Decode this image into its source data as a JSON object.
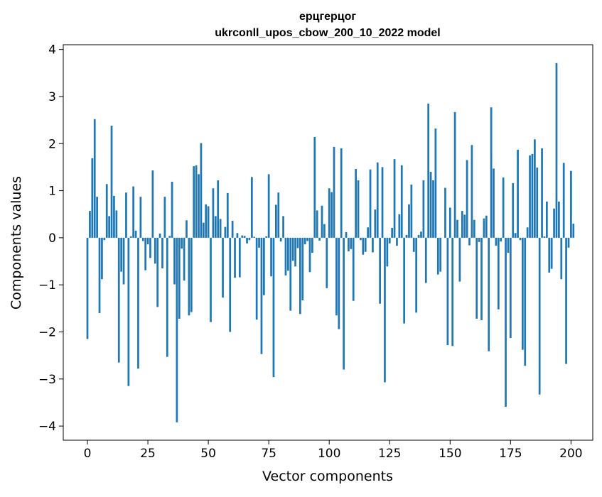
{
  "chart_data": {
    "type": "bar",
    "title_line1": "ерцгерцог",
    "title_line2": "ukrconll_upos_cbow_200_10_2022 model",
    "xlabel": "Vector components",
    "ylabel": "Components values",
    "xlim": [
      -10,
      209
    ],
    "ylim": [
      -4.3,
      4.1
    ],
    "xticks": [
      0,
      25,
      50,
      75,
      100,
      125,
      150,
      175,
      200
    ],
    "yticks": [
      -4,
      -3,
      -2,
      -1,
      0,
      1,
      2,
      3,
      4
    ],
    "xtick_labels": [
      "0",
      "25",
      "50",
      "75",
      "100",
      "125",
      "150",
      "175",
      "200"
    ],
    "ytick_labels": [
      "−4",
      "−3",
      "−2",
      "−1",
      "0",
      "1",
      "2",
      "3",
      "4"
    ],
    "bar_color": "#1f77b4",
    "grid": false,
    "values": [
      -2.15,
      0.57,
      1.69,
      2.52,
      0.87,
      -1.6,
      -0.88,
      -0.05,
      1.14,
      0.46,
      2.38,
      0.89,
      0.58,
      -2.65,
      -0.72,
      -0.99,
      0.96,
      -3.15,
      0.03,
      1.09,
      0.15,
      -2.78,
      0.87,
      -0.07,
      -0.69,
      -0.14,
      -0.43,
      1.43,
      -0.55,
      -1.47,
      0.09,
      -0.65,
      0.87,
      -2.53,
      0.04,
      1.19,
      -0.99,
      -3.92,
      -1.72,
      -0.23,
      -0.91,
      0.37,
      -1.65,
      -1.58,
      1.52,
      1.54,
      1.35,
      2.01,
      0.32,
      0.71,
      0.67,
      -1.79,
      1.05,
      0.46,
      1.22,
      0.4,
      -1.27,
      0.23,
      0.95,
      -2.0,
      0.36,
      -0.85,
      0.1,
      -0.84,
      0.05,
      0.04,
      -0.12,
      -0.05,
      1.29,
      0.02,
      -1.74,
      -0.21,
      -2.47,
      -1.22,
      0.03,
      1.35,
      -0.82,
      -2.96,
      0.7,
      0.96,
      -0.08,
      0.46,
      -0.8,
      -0.7,
      -1.55,
      -0.49,
      -0.61,
      -0.22,
      -1.62,
      -1.33,
      -0.14,
      -0.07,
      -0.73,
      -0.32,
      2.14,
      0.58,
      -0.06,
      0.68,
      0.29,
      -1.07,
      1.05,
      0.97,
      1.93,
      -1.65,
      -1.94,
      1.9,
      -2.8,
      0.12,
      -0.29,
      -0.24,
      -1.34,
      1.46,
      1.22,
      -0.05,
      -0.36,
      -0.3,
      0.22,
      1.45,
      -0.31,
      0.6,
      1.6,
      -1.4,
      1.5,
      -3.07,
      -0.61,
      -0.12,
      0.21,
      1.67,
      -0.17,
      0.5,
      1.54,
      -1.82,
      0.06,
      0.71,
      1.13,
      -0.3,
      -1.59,
      0.06,
      0.13,
      1.22,
      -0.96,
      2.85,
      1.4,
      1.22,
      2.32,
      -0.78,
      -0.72,
      0.0,
      1.06,
      -2.28,
      0.64,
      -2.3,
      2.67,
      0.38,
      -0.93,
      0.57,
      0.49,
      1.65,
      -0.16,
      1.97,
      0.38,
      -1.72,
      -0.09,
      -1.75,
      0.41,
      0.47,
      -2.41,
      2.77,
      1.47,
      -0.17,
      -1.52,
      -0.08,
      1.28,
      -3.59,
      -0.32,
      -2.13,
      1.16,
      0.1,
      1.87,
      -0.05,
      -2.38,
      -2.72,
      0.22,
      1.75,
      1.78,
      2.09,
      1.49,
      -3.33,
      1.9,
      0.03,
      0.77,
      -0.74,
      -0.66,
      0.62,
      3.71,
      0.77,
      -0.88,
      1.59,
      -2.68,
      -0.21,
      1.42,
      0.3
    ]
  }
}
